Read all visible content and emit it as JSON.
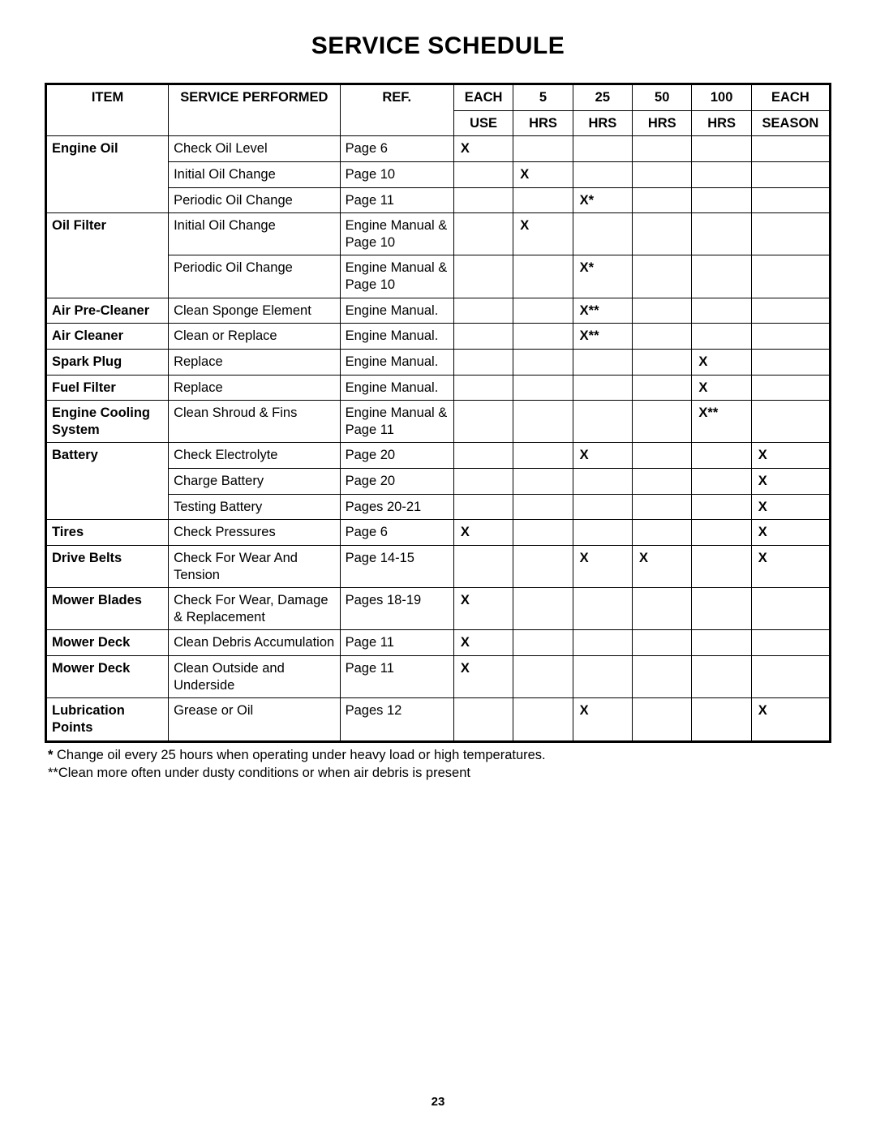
{
  "title": "SERVICE SCHEDULE",
  "page_number": "23",
  "headers": {
    "item": "ITEM",
    "service": "SERVICE PERFORMED",
    "ref": "REF.",
    "each_use_1": "EACH",
    "each_use_2": "USE",
    "h5_1": "5",
    "h5_2": "HRS",
    "h25_1": "25",
    "h25_2": "HRS",
    "h50_1": "50",
    "h50_2": "HRS",
    "h100_1": "100",
    "h100_2": "HRS",
    "season_1": "EACH",
    "season_2": "SEASON"
  },
  "rows": [
    {
      "item": "Engine Oil",
      "item_bold": true,
      "item_rowspan": 3,
      "service": "Check Oil Level",
      "ref": "Page 6",
      "each_use": "X",
      "h5": "",
      "h25": "",
      "h50": "",
      "h100": "",
      "season": ""
    },
    {
      "service": "Initial Oil Change",
      "ref": "Page 10",
      "each_use": "",
      "h5": "X",
      "h25": "",
      "h50": "",
      "h100": "",
      "season": ""
    },
    {
      "service": "Periodic Oil Change",
      "ref": "Page 11",
      "each_use": "",
      "h5": "",
      "h25": "X*",
      "h50": "",
      "h100": "",
      "season": ""
    },
    {
      "item": "Oil Filter",
      "item_bold": true,
      "item_rowspan": 2,
      "service": "Initial Oil Change",
      "ref": "Engine Manual & Page 10",
      "each_use": "",
      "h5": "X",
      "h25": "",
      "h50": "",
      "h100": "",
      "season": ""
    },
    {
      "service": "Periodic Oil Change",
      "ref": "Engine Manual & Page 10",
      "each_use": "",
      "h5": "",
      "h25": "X*",
      "h50": "",
      "h100": "",
      "season": ""
    },
    {
      "item": "Air Pre-Cleaner",
      "item_bold": true,
      "item_rowspan": 1,
      "service": "Clean Sponge Element",
      "ref": "Engine Manual.",
      "each_use": "",
      "h5": "",
      "h25": "X**",
      "h50": "",
      "h100": "",
      "season": ""
    },
    {
      "item": "Air Cleaner",
      "item_bold": true,
      "item_rowspan": 1,
      "service": "Clean or Replace",
      "ref": "Engine Manual.",
      "each_use": "",
      "h5": "",
      "h25": "X**",
      "h50": "",
      "h100": "",
      "season": ""
    },
    {
      "item": "Spark Plug",
      "item_bold": true,
      "item_rowspan": 1,
      "service": "Replace",
      "ref": "Engine Manual.",
      "each_use": "",
      "h5": "",
      "h25": "",
      "h50": "",
      "h100": "X",
      "season": ""
    },
    {
      "item": "Fuel Filter",
      "item_bold": true,
      "item_rowspan": 1,
      "service": "Replace",
      "ref": "Engine Manual.",
      "each_use": "",
      "h5": "",
      "h25": "",
      "h50": "",
      "h100": "X",
      "season": ""
    },
    {
      "item": "Engine Cooling System",
      "item_bold": true,
      "item_rowspan": 1,
      "service": "Clean Shroud & Fins",
      "ref": "Engine Manual & Page 11",
      "each_use": "",
      "h5": "",
      "h25": "",
      "h50": "",
      "h100": "X**",
      "season": ""
    },
    {
      "item": "Battery",
      "item_bold": true,
      "item_rowspan": 3,
      "service": "Check Electrolyte",
      "ref": "Page 20",
      "each_use": "",
      "h5": "",
      "h25": "X",
      "h50": "",
      "h100": "",
      "season": "X"
    },
    {
      "service": "Charge Battery",
      "ref": "Page 20",
      "each_use": "",
      "h5": "",
      "h25": "",
      "h50": "",
      "h100": "",
      "season": "X"
    },
    {
      "service": "Testing Battery",
      "ref": "Pages 20-21",
      "each_use": "",
      "h5": "",
      "h25": "",
      "h50": "",
      "h100": "",
      "season": "X"
    },
    {
      "item": "Tires",
      "item_bold": true,
      "item_rowspan": 1,
      "service": "Check Pressures",
      "ref": "Page 6",
      "each_use": "X",
      "h5": "",
      "h25": "",
      "h50": "",
      "h100": "",
      "season": "X"
    },
    {
      "item": "Drive Belts",
      "item_bold": true,
      "item_rowspan": 1,
      "service": "Check For Wear And Tension",
      "ref": "Page 14-15",
      "each_use": "",
      "h5": "",
      "h25": "X",
      "h50": "X",
      "h100": "",
      "season": "X"
    },
    {
      "item": "Mower Blades",
      "item_bold": true,
      "item_rowspan": 1,
      "service": "Check For Wear, Damage & Replacement",
      "ref": "Pages 18-19",
      "each_use": "X",
      "h5": "",
      "h25": "",
      "h50": "",
      "h100": "",
      "season": ""
    },
    {
      "item": "Mower Deck",
      "item_bold": true,
      "item_rowspan": 1,
      "service": "Clean Debris Accumulation",
      "ref": "Page 11",
      "each_use": "X",
      "h5": "",
      "h25": "",
      "h50": "",
      "h100": "",
      "season": ""
    },
    {
      "item": "Mower Deck",
      "item_bold": true,
      "item_rowspan": 1,
      "service": "Clean Outside and Underside",
      "ref": "Page 11",
      "each_use": "X",
      "h5": "",
      "h25": "",
      "h50": "",
      "h100": "",
      "season": ""
    },
    {
      "item": "Lubrication Points",
      "item_bold": true,
      "item_rowspan": 1,
      "service": "Grease or Oil",
      "ref": "Pages 12",
      "each_use": "",
      "h5": "",
      "h25": "X",
      "h50": "",
      "h100": "",
      "season": "X"
    }
  ],
  "footnotes": {
    "line1_bold": "*",
    "line1_text": " Change oil every 25 hours when operating under heavy load or high temperatures.",
    "line2": "**Clean more often under dusty conditions or when air debris is present"
  }
}
